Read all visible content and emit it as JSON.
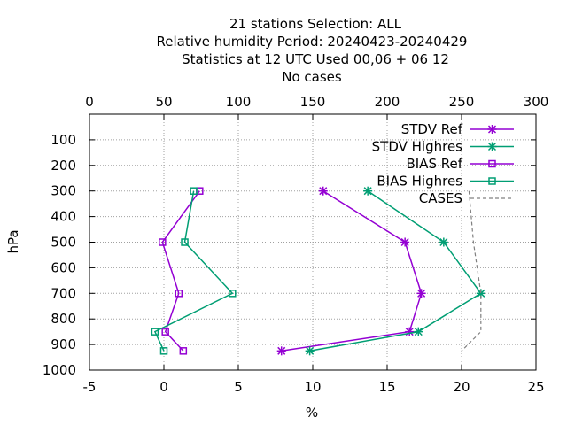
{
  "title_lines": [
    "21 stations Selection: ALL",
    "Relative humidity  Period: 20240423-20240429",
    "Statistics at 12 UTC  Used  00,06  + 06 12",
    "No cases"
  ],
  "chart_data": {
    "type": "line",
    "title": "21 stations Selection: ALL",
    "xlabel": "%",
    "ylabel": "hPa",
    "x_bottom_range": [
      -5,
      25
    ],
    "x_bottom_ticks": [
      "-5",
      "0",
      "5",
      "10",
      "15",
      "20",
      "25"
    ],
    "x_top_range": [
      0,
      300
    ],
    "x_top_ticks": [
      "0",
      "50",
      "100",
      "150",
      "200",
      "250",
      "300"
    ],
    "y_range": [
      1000,
      0
    ],
    "y_ticks": [
      "100",
      "200",
      "300",
      "400",
      "500",
      "600",
      "700",
      "800",
      "900",
      "1000"
    ],
    "grid": true,
    "legend_position": "top-right",
    "series": [
      {
        "name": "STDV Ref",
        "color": "#9400d3",
        "marker": "star",
        "axis": "bottom",
        "points": [
          [
            10.7,
            300
          ],
          [
            16.2,
            500
          ],
          [
            17.3,
            700
          ],
          [
            16.5,
            850
          ],
          [
            7.9,
            925
          ]
        ]
      },
      {
        "name": "STDV Highres",
        "color": "#009e73",
        "marker": "star",
        "axis": "bottom",
        "points": [
          [
            13.7,
            300
          ],
          [
            18.8,
            500
          ],
          [
            21.3,
            700
          ],
          [
            17.1,
            850
          ],
          [
            9.8,
            925
          ]
        ]
      },
      {
        "name": "BIAS Ref",
        "color": "#9400d3",
        "marker": "square",
        "axis": "bottom",
        "points": [
          [
            2.4,
            300
          ],
          [
            -0.1,
            500
          ],
          [
            1.0,
            700
          ],
          [
            0.1,
            850
          ],
          [
            1.3,
            925
          ]
        ]
      },
      {
        "name": "BIAS Highres",
        "color": "#009e73",
        "marker": "square",
        "axis": "bottom",
        "points": [
          [
            2.0,
            300
          ],
          [
            1.4,
            500
          ],
          [
            4.6,
            700
          ],
          [
            -0.6,
            850
          ],
          [
            0.0,
            925
          ]
        ]
      },
      {
        "name": "CASES",
        "color": "#808080",
        "marker": "none",
        "dashed": true,
        "axis": "top",
        "points": [
          [
            255,
            300
          ],
          [
            258,
            500
          ],
          [
            263,
            700
          ],
          [
            263,
            850
          ],
          [
            250,
            925
          ]
        ]
      }
    ]
  }
}
